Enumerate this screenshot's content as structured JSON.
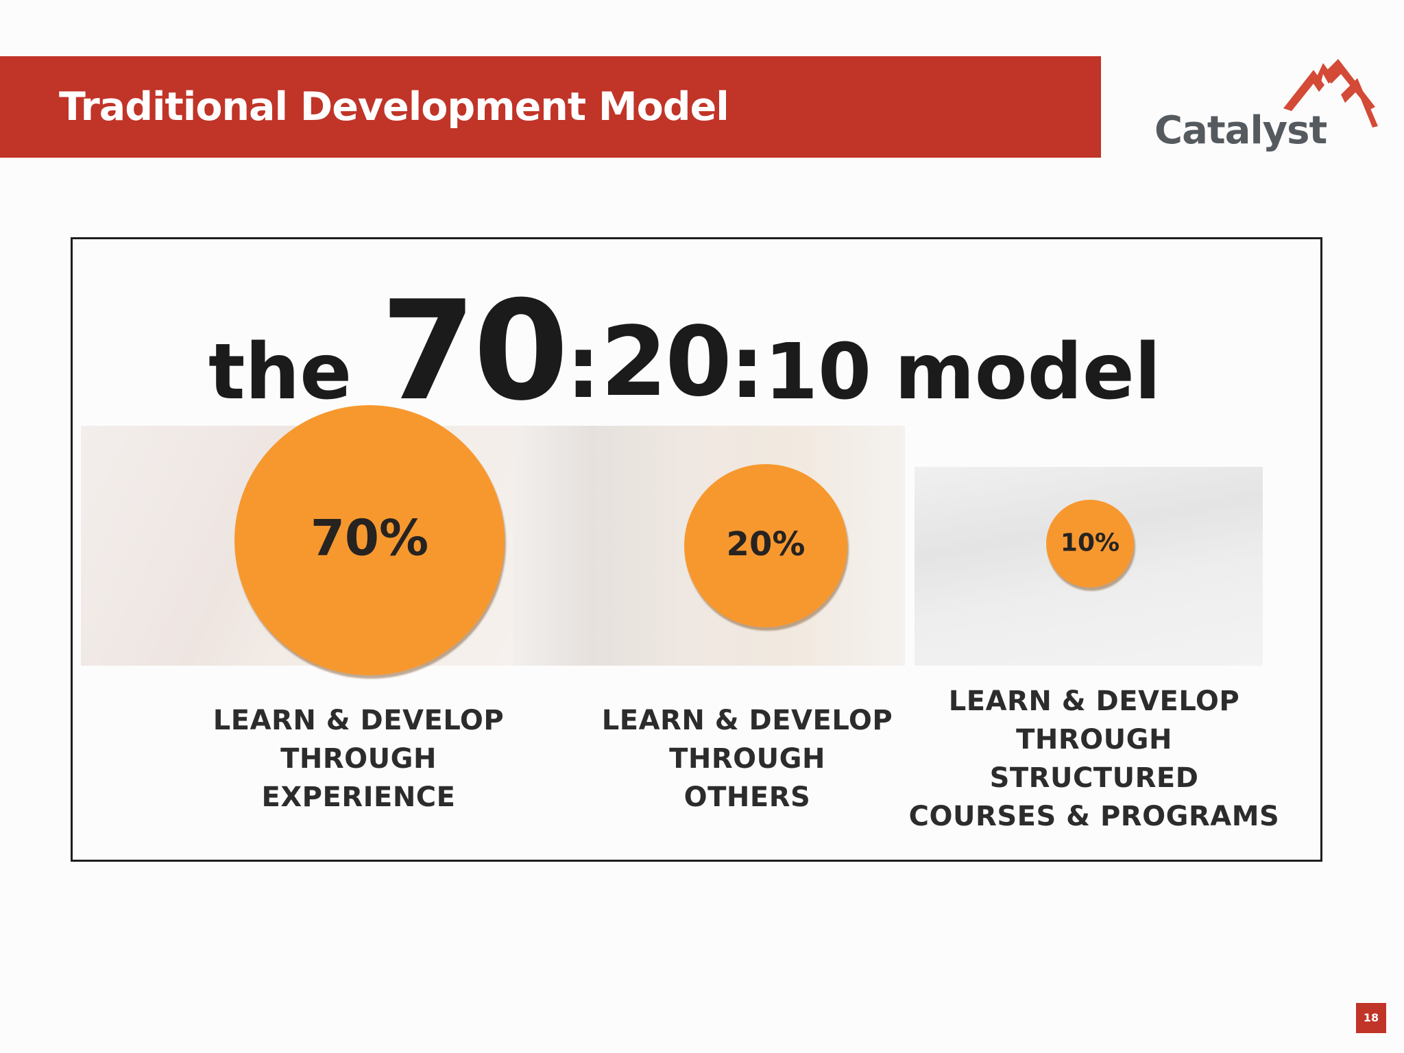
{
  "slide": {
    "title": "Traditional Development Model",
    "page_number": "18"
  },
  "logo": {
    "text": "Catalyst",
    "mark_icon": "mountain-peaks-icon",
    "brand_color": "#d34a36"
  },
  "colors": {
    "title_bar": "#c13428",
    "circle_fill": "#f7982f",
    "text_dark": "#2c2c2c"
  },
  "model": {
    "headline": {
      "the": "the",
      "big": "70",
      "colon1": ":",
      "mid": "20",
      "colon2": ":",
      "small": "10",
      "model": "model"
    },
    "segments": [
      {
        "percent_label": "70%",
        "caption_lines": [
          "LEARN & DEVELOP",
          "THROUGH",
          "EXPERIENCE"
        ]
      },
      {
        "percent_label": "20%",
        "caption_lines": [
          "LEARN & DEVELOP",
          "THROUGH",
          "OTHERS"
        ]
      },
      {
        "percent_label": "10%",
        "caption_lines": [
          "LEARN & DEVELOP",
          "THROUGH",
          "STRUCTURED",
          "COURSES & PROGRAMS"
        ]
      }
    ]
  }
}
